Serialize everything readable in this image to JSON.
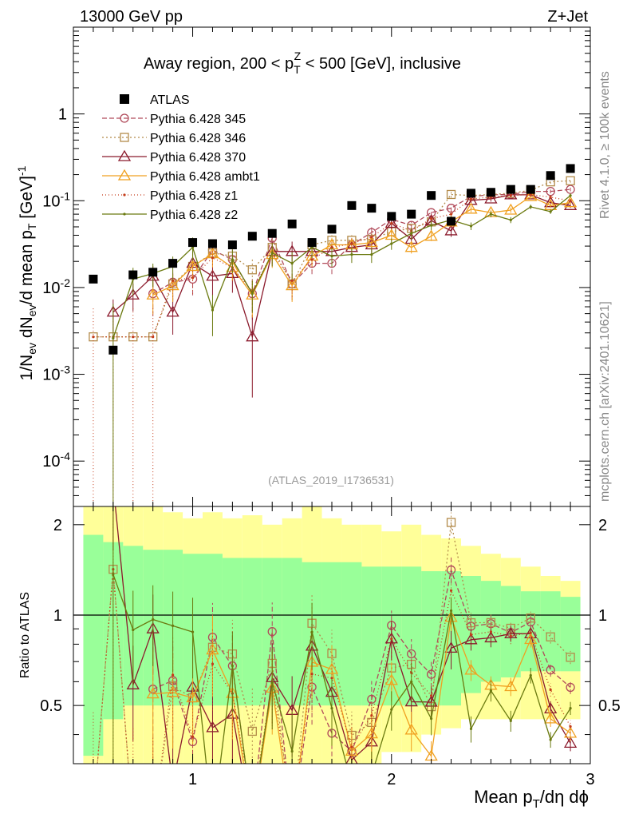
{
  "header": {
    "left": "13000 GeV pp",
    "right": "Z+Jet"
  },
  "side_labels": {
    "top": "Rivet 4.1.0, ≥ 100k events",
    "bottom": "mcplots.cern.ch [arXiv:2401.10621]"
  },
  "chart_data": {
    "type": "scatter",
    "title": "Away region, 200 < p_T^Z < 500 [GeV], inclusive",
    "watermark": "(ATLAS_2019_I1736531)",
    "xlabel": "Mean p_T/dη dϕ",
    "ylabel": "1/N_ev dN_ev/d mean p_T [GeV]^-1",
    "ratio_ylabel": "Ratio to ATLAS",
    "xlim": [
      0.4,
      3.0
    ],
    "ylim": [
      3e-05,
      10
    ],
    "ratio_ylim": [
      0.32,
      2.3
    ],
    "x_ticks": [
      "1",
      "2",
      "3"
    ],
    "y_ticks": [
      "1",
      "10^-1",
      "10^-2",
      "10^-3",
      "10^-4"
    ],
    "ratio_ticks": [
      "2",
      "1",
      "0.5"
    ],
    "x": [
      0.5,
      0.6,
      0.7,
      0.8,
      0.9,
      1.0,
      1.1,
      1.2,
      1.3,
      1.4,
      1.5,
      1.6,
      1.7,
      1.8,
      1.9,
      2.0,
      2.1,
      2.2,
      2.3,
      2.4,
      2.5,
      2.6,
      2.7,
      2.8,
      2.9
    ],
    "atlas": [
      0.0125,
      0.0019,
      0.014,
      0.015,
      0.019,
      0.033,
      0.032,
      0.031,
      0.039,
      0.042,
      0.054,
      0.033,
      0.047,
      0.088,
      0.082,
      0.066,
      0.07,
      0.115,
      0.058,
      0.122,
      0.125,
      0.135,
      0.135,
      0.195,
      0.235
    ],
    "band_green": [
      [
        0.34,
        1.85
      ],
      [
        0.45,
        1.75
      ],
      [
        0.5,
        1.7
      ],
      [
        0.5,
        1.65
      ],
      [
        0.5,
        1.65
      ],
      [
        0.5,
        1.6
      ],
      [
        0.5,
        1.6
      ],
      [
        0.5,
        1.55
      ],
      [
        0.5,
        1.55
      ],
      [
        0.5,
        1.55
      ],
      [
        0.5,
        1.55
      ],
      [
        0.5,
        1.5
      ],
      [
        0.5,
        1.5
      ],
      [
        0.5,
        1.5
      ],
      [
        0.5,
        1.45
      ],
      [
        0.5,
        1.45
      ],
      [
        0.5,
        1.45
      ],
      [
        0.5,
        1.4
      ],
      [
        0.5,
        1.4
      ],
      [
        0.55,
        1.35
      ],
      [
        0.6,
        1.3
      ],
      [
        0.62,
        1.25
      ],
      [
        0.65,
        1.2
      ],
      [
        0.65,
        1.2
      ],
      [
        0.65,
        1.15
      ]
    ],
    "band_yellow": [
      [
        0.32,
        2.3
      ],
      [
        0.32,
        2.3
      ],
      [
        0.32,
        2.3
      ],
      [
        0.32,
        2.3
      ],
      [
        0.32,
        2.2
      ],
      [
        0.32,
        2.1
      ],
      [
        0.32,
        2.2
      ],
      [
        0.32,
        2.1
      ],
      [
        0.32,
        2.15
      ],
      [
        0.32,
        2.0
      ],
      [
        0.32,
        2.1
      ],
      [
        0.32,
        2.3
      ],
      [
        0.32,
        2.1
      ],
      [
        0.32,
        2.0
      ],
      [
        0.32,
        2.0
      ],
      [
        0.35,
        1.9
      ],
      [
        0.35,
        2.0
      ],
      [
        0.4,
        1.85
      ],
      [
        0.42,
        1.8
      ],
      [
        0.45,
        1.7
      ],
      [
        0.45,
        1.6
      ],
      [
        0.45,
        1.55
      ],
      [
        0.45,
        1.45
      ],
      [
        0.45,
        1.35
      ],
      [
        0.45,
        1.3
      ]
    ],
    "series": [
      {
        "name": "Pythia 6.428 345",
        "color": "#b14a5a",
        "dash": "6,3",
        "marker": "circle",
        "values": [
          null,
          null,
          null,
          0.0085,
          0.0115,
          0.0125,
          0.027,
          0.021,
          0.0085,
          0.037,
          0.011,
          0.019,
          0.019,
          0.031,
          0.043,
          0.061,
          0.052,
          0.073,
          0.082,
          0.112,
          0.117,
          0.118,
          0.128,
          0.128,
          0.135
        ],
        "errors": [
          0,
          0,
          0,
          0.45,
          0.35,
          0.35,
          0.3,
          0.3,
          0.5,
          0.25,
          0.35,
          0.25,
          0.25,
          0.2,
          0.15,
          0.12,
          0.12,
          0.1,
          0.1,
          0.08,
          0.07,
          0.06,
          0.05,
          0.05,
          0.05
        ]
      },
      {
        "name": "Pythia 6.428 346",
        "color": "#b38b4a",
        "dash": "2,3",
        "marker": "square",
        "values": [
          0.0027,
          0.0027,
          0.0027,
          0.0027,
          0.011,
          0.0175,
          0.025,
          0.023,
          0.016,
          0.029,
          0.011,
          0.031,
          0.035,
          0.035,
          0.036,
          0.044,
          0.048,
          0.057,
          0.118,
          0.115,
          0.118,
          0.122,
          0.132,
          0.165,
          0.17
        ],
        "errors": [
          0,
          0,
          0,
          0,
          0.35,
          0.3,
          0.3,
          0.3,
          0.4,
          0.3,
          0.35,
          0.25,
          0.2,
          0.2,
          0.18,
          0.15,
          0.12,
          0.1,
          0.08,
          0.08,
          0.07,
          0.06,
          0.05,
          0.05,
          0.05
        ]
      },
      {
        "name": "Pythia 6.428 370",
        "color": "#8b1a2c",
        "dash": "",
        "marker": "triangle",
        "values": [
          null,
          0.0052,
          0.0082,
          0.0135,
          0.0052,
          0.019,
          0.0135,
          0.0145,
          0.0027,
          0.026,
          0.026,
          0.026,
          0.026,
          0.029,
          0.031,
          0.055,
          0.036,
          0.059,
          0.045,
          0.101,
          0.105,
          0.117,
          0.117,
          0.095,
          0.088
        ],
        "errors": [
          0,
          0.4,
          0.35,
          0.3,
          0.45,
          0.35,
          0.4,
          0.4,
          0.8,
          0.3,
          0.3,
          0.25,
          0.25,
          0.2,
          0.2,
          0.15,
          0.15,
          0.12,
          0.15,
          0.08,
          0.07,
          0.06,
          0.05,
          0.06,
          0.06
        ]
      },
      {
        "name": "Pythia 6.428 ambt1",
        "color": "#f0a020",
        "dash": "",
        "marker": "triangle",
        "values": [
          null,
          null,
          null,
          0.0082,
          0.0105,
          0.0175,
          0.0245,
          0.017,
          0.0082,
          0.024,
          0.0105,
          0.023,
          0.031,
          0.031,
          0.033,
          0.04,
          0.029,
          0.039,
          0.057,
          0.08,
          0.073,
          0.078,
          0.112,
          0.088,
          0.095
        ],
        "errors": [
          0,
          0,
          0,
          0.4,
          0.35,
          0.3,
          0.3,
          0.3,
          0.45,
          0.3,
          0.35,
          0.25,
          0.2,
          0.2,
          0.18,
          0.15,
          0.15,
          0.12,
          0.1,
          0.08,
          0.07,
          0.07,
          0.06,
          0.06,
          0.06
        ]
      },
      {
        "name": "Pythia 6.428 z1",
        "color": "#c43c1a",
        "dash": "1,3",
        "marker": "dot",
        "values": [
          0.0027,
          0.0027,
          0.0027,
          0.0027,
          0.012,
          0.013,
          0.022,
          0.017,
          0.009,
          0.025,
          0.012,
          0.021,
          0.029,
          0.032,
          0.038,
          0.055,
          0.045,
          0.062,
          0.07,
          0.105,
          0.11,
          0.115,
          0.118,
          0.11,
          0.1
        ],
        "errors": [
          1.2,
          1.2,
          1.2,
          1.2,
          0.35,
          0.35,
          0.3,
          0.3,
          0.4,
          0.3,
          0.35,
          0.25,
          0.2,
          0.2,
          0.18,
          0.15,
          0.12,
          0.1,
          0.1,
          0.08,
          0.07,
          0.06,
          0.05,
          0.05,
          0.05
        ]
      },
      {
        "name": "Pythia 6.428 z2",
        "color": "#6b7a10",
        "dash": "",
        "marker": "dot",
        "values": [
          null,
          0.0026,
          0.0125,
          0.0145,
          0.0175,
          0.029,
          0.0055,
          0.021,
          0.0085,
          0.025,
          0.019,
          0.029,
          0.023,
          0.024,
          0.024,
          0.032,
          0.042,
          0.052,
          0.06,
          0.051,
          0.07,
          0.06,
          0.085,
          0.075,
          0.115
        ],
        "errors": [
          0,
          1.5,
          0.35,
          0.3,
          0.3,
          0.3,
          0.5,
          0.3,
          0.4,
          0.3,
          0.35,
          0.25,
          0.25,
          0.2,
          0.2,
          0.15,
          0.15,
          0.12,
          0.1,
          0.1,
          0.08,
          0.08,
          0.06,
          0.06,
          0.05
        ]
      }
    ],
    "legend": [
      "ATLAS",
      "Pythia 6.428 345",
      "Pythia 6.428 346",
      "Pythia 6.428 370",
      "Pythia 6.428 ambt1",
      "Pythia 6.428 z1",
      "Pythia 6.428 z2"
    ]
  }
}
